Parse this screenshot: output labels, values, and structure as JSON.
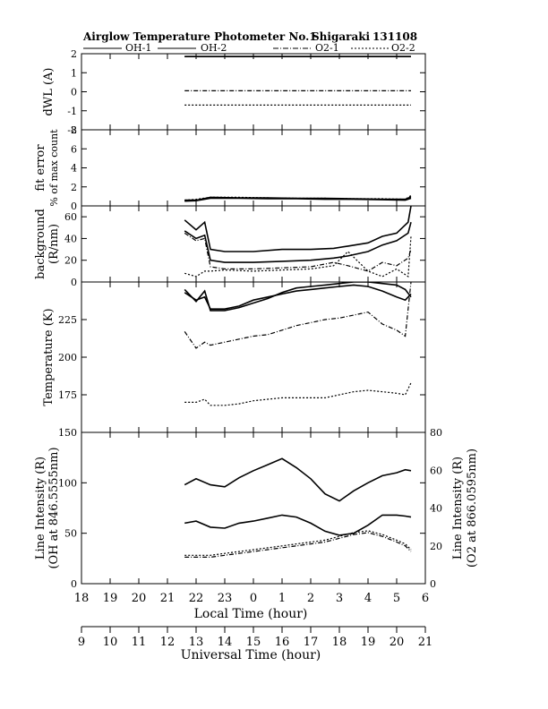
{
  "header": {
    "title": "Airglow Temperature Photometer No.1",
    "site": "Shigaraki",
    "date_code": "131108"
  },
  "legend": [
    {
      "label": "OH-1",
      "style": "solid",
      "width": 1
    },
    {
      "label": "OH-2",
      "style": "solid",
      "width": 1
    },
    {
      "label": "O2-1",
      "style": "dashdot",
      "width": 1
    },
    {
      "label": "O2-2",
      "style": "dotted",
      "width": 1
    }
  ],
  "x_axes": {
    "local": {
      "title": "Local Time (hour)",
      "ticks": [
        "18",
        "19",
        "20",
        "21",
        "22",
        "23",
        "0",
        "1",
        "2",
        "3",
        "4",
        "5",
        "6"
      ]
    },
    "universal": {
      "title": "Universal Time (hour)",
      "ticks": [
        "9",
        "10",
        "11",
        "12",
        "13",
        "14",
        "15",
        "16",
        "17",
        "18",
        "19",
        "20",
        "21"
      ]
    }
  },
  "chart_data": [
    {
      "type": "line",
      "panel": "dwl",
      "ylabel": "dWL (A)",
      "ylim": [
        -2,
        2
      ],
      "yticks": [
        "-2",
        "-1",
        "0",
        "1",
        "2"
      ],
      "x": [
        12.6,
        20.5
      ],
      "series": [
        {
          "name": "OH-1",
          "values": [
            1.85,
            1.85
          ]
        },
        {
          "name": "OH-2",
          "values": [
            1.85,
            1.85
          ]
        },
        {
          "name": "O2-1",
          "values": [
            0.05,
            0.05
          ]
        },
        {
          "name": "O2-2",
          "values": [
            -0.7,
            -0.7
          ]
        }
      ]
    },
    {
      "type": "line",
      "panel": "fit_error",
      "ylabel": "fit error",
      "ylabel2": "% of max count",
      "ylim": [
        0,
        8
      ],
      "yticks": [
        "0",
        "2",
        "4",
        "6",
        "8"
      ],
      "x": [
        12.6,
        13.0,
        13.5,
        14.5,
        15.5,
        16.5,
        17.5,
        18.5,
        19.5,
        20.3,
        20.5
      ],
      "series": [
        {
          "name": "OH-1",
          "values": [
            0.6,
            0.6,
            0.9,
            0.85,
            0.85,
            0.8,
            0.8,
            0.75,
            0.7,
            0.7,
            0.9
          ]
        },
        {
          "name": "OH-2",
          "values": [
            0.5,
            0.55,
            0.8,
            0.8,
            0.75,
            0.75,
            0.7,
            0.7,
            0.65,
            0.6,
            0.8
          ]
        },
        {
          "name": "O2-1",
          "values": [
            0.55,
            0.6,
            0.85,
            0.85,
            0.8,
            0.8,
            0.75,
            0.7,
            0.7,
            0.65,
            1.0
          ]
        },
        {
          "name": "O2-2",
          "values": [
            0.6,
            0.7,
            0.9,
            0.9,
            0.85,
            0.8,
            0.8,
            0.75,
            0.75,
            0.7,
            1.1
          ]
        }
      ]
    },
    {
      "type": "line",
      "panel": "background",
      "ylabel": "background",
      "ylabel2": "(R/nm)",
      "ylim": [
        0,
        70
      ],
      "yticks": [
        "0",
        "20",
        "40",
        "60"
      ],
      "x": [
        12.6,
        13.0,
        13.3,
        13.5,
        14.0,
        15.0,
        16.0,
        17.0,
        17.8,
        18.3,
        19.0,
        19.5,
        20.0,
        20.4,
        20.5
      ],
      "series": [
        {
          "name": "OH-1",
          "values": [
            57,
            48,
            55,
            30,
            28,
            28,
            30,
            30,
            31,
            33,
            36,
            42,
            45,
            55,
            70
          ]
        },
        {
          "name": "OH-2",
          "values": [
            47,
            40,
            43,
            20,
            18,
            18,
            19,
            20,
            22,
            24,
            28,
            34,
            38,
            45,
            55
          ]
        },
        {
          "name": "O2-1",
          "values": [
            45,
            38,
            40,
            14,
            12,
            12,
            13,
            14,
            18,
            15,
            10,
            18,
            15,
            22,
            30
          ]
        },
        {
          "name": "O2-2",
          "values": [
            8,
            5,
            10,
            10,
            11,
            10,
            11,
            12,
            15,
            28,
            10,
            5,
            12,
            5,
            42
          ]
        }
      ]
    },
    {
      "type": "line",
      "panel": "temperature",
      "ylabel": "Temperature (K)",
      "ylim": [
        150,
        250
      ],
      "yticks": [
        "175",
        "200",
        "225"
      ],
      "x": [
        12.6,
        13.0,
        13.3,
        13.5,
        14.0,
        14.5,
        15.0,
        15.5,
        16.0,
        16.5,
        17.0,
        17.5,
        18.0,
        18.5,
        19.0,
        19.5,
        20.0,
        20.3,
        20.5
      ],
      "series": [
        {
          "name": "OH-1",
          "values": [
            245,
            237,
            244,
            231,
            231,
            233,
            236,
            239,
            243,
            246,
            247,
            248,
            249,
            250,
            250,
            249,
            248,
            245,
            240
          ]
        },
        {
          "name": "OH-2",
          "values": [
            243,
            238,
            240,
            232,
            232,
            234,
            238,
            240,
            242,
            244,
            245,
            246,
            247,
            248,
            247,
            244,
            240,
            238,
            242
          ]
        },
        {
          "name": "O2-1",
          "values": [
            217,
            206,
            210,
            208,
            210,
            212,
            214,
            215,
            218,
            221,
            223,
            225,
            226,
            228,
            230,
            222,
            218,
            214,
            250
          ]
        },
        {
          "name": "O2-2",
          "values": [
            170,
            170,
            172,
            168,
            168,
            169,
            171,
            172,
            173,
            173,
            173,
            173,
            175,
            177,
            178,
            177,
            176,
            175,
            183
          ]
        }
      ]
    },
    {
      "type": "line",
      "panel": "intensity",
      "ylabel": "Line Intensity (R)",
      "ylabel2": "(OH at 846.5555nm)",
      "ylabel_right": "Line Intensity (R)",
      "ylabel_right2": "(O2 at 866.0595nm)",
      "ylim": [
        0,
        150
      ],
      "yticks": [
        "0",
        "50",
        "100",
        "150"
      ],
      "ylim_right": [
        0,
        80
      ],
      "yticks_right": [
        "0",
        "20",
        "40",
        "60",
        "80"
      ],
      "x": [
        12.6,
        13.0,
        13.5,
        14.0,
        14.5,
        15.0,
        15.5,
        16.0,
        16.5,
        17.0,
        17.5,
        18.0,
        18.5,
        19.0,
        19.5,
        20.0,
        20.3,
        20.5
      ],
      "series": [
        {
          "name": "OH-1",
          "values": [
            98,
            104,
            98,
            96,
            105,
            112,
            118,
            124,
            115,
            104,
            89,
            82,
            92,
            100,
            107,
            110,
            113,
            112
          ]
        },
        {
          "name": "OH-2",
          "values": [
            60,
            62,
            56,
            55,
            60,
            62,
            65,
            68,
            66,
            60,
            52,
            48,
            50,
            58,
            68,
            68,
            67,
            66
          ]
        },
        {
          "name": "O2-1",
          "values": [
            14,
            14,
            14,
            15,
            16,
            17,
            18,
            19,
            20,
            21,
            22,
            24,
            26,
            27,
            25,
            22,
            20,
            17
          ],
          "axis": "right"
        },
        {
          "name": "O2-2",
          "values": [
            15,
            15,
            15,
            16,
            17,
            18,
            19,
            20,
            21,
            22,
            23,
            25,
            27,
            28,
            26,
            23,
            21,
            18
          ],
          "axis": "right"
        }
      ]
    }
  ]
}
